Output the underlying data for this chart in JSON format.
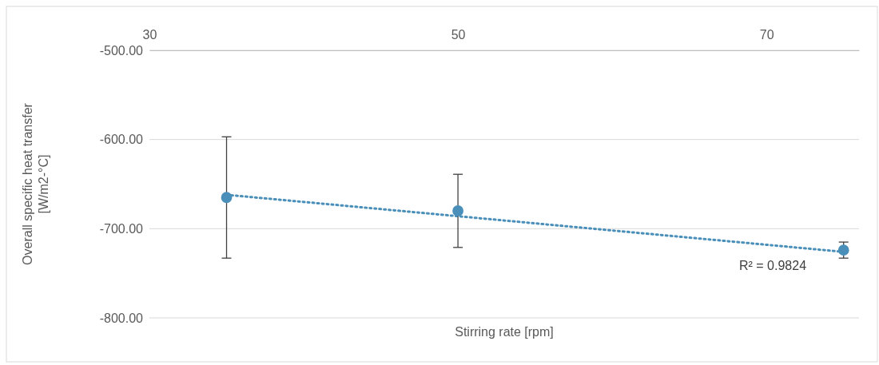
{
  "chart_data": {
    "type": "scatter",
    "xlabel": "Stirring rate [rpm]",
    "ylabel": "Overall specific heat transfer [W/m2-°C]",
    "xlim": [
      30,
      76
    ],
    "xticks": [
      30,
      50,
      70
    ],
    "ylim": [
      -800,
      -500
    ],
    "yticks": [
      {
        "value": -500,
        "label": "-500.00"
      },
      {
        "value": -600,
        "label": "-600.00"
      },
      {
        "value": -700,
        "label": "-700.00"
      },
      {
        "value": -800,
        "label": "-800.00"
      }
    ],
    "grid": "y",
    "marker": "circle",
    "series": [
      {
        "color": "#4a8fba",
        "x": [
          35,
          50,
          75
        ],
        "values": [
          -665,
          -680,
          -724
        ],
        "errors": [
          [
            -733,
            -597
          ],
          [
            -721,
            -639
          ],
          [
            -733,
            -715
          ]
        ]
      },
      {
        "type": "line",
        "color": "#4a8fba",
        "line_style": "dotted",
        "marker": "none",
        "x": [
          35,
          75
        ],
        "values": [
          -662,
          -726
        ]
      }
    ],
    "annotations": [
      "R² = 0.9824"
    ]
  }
}
